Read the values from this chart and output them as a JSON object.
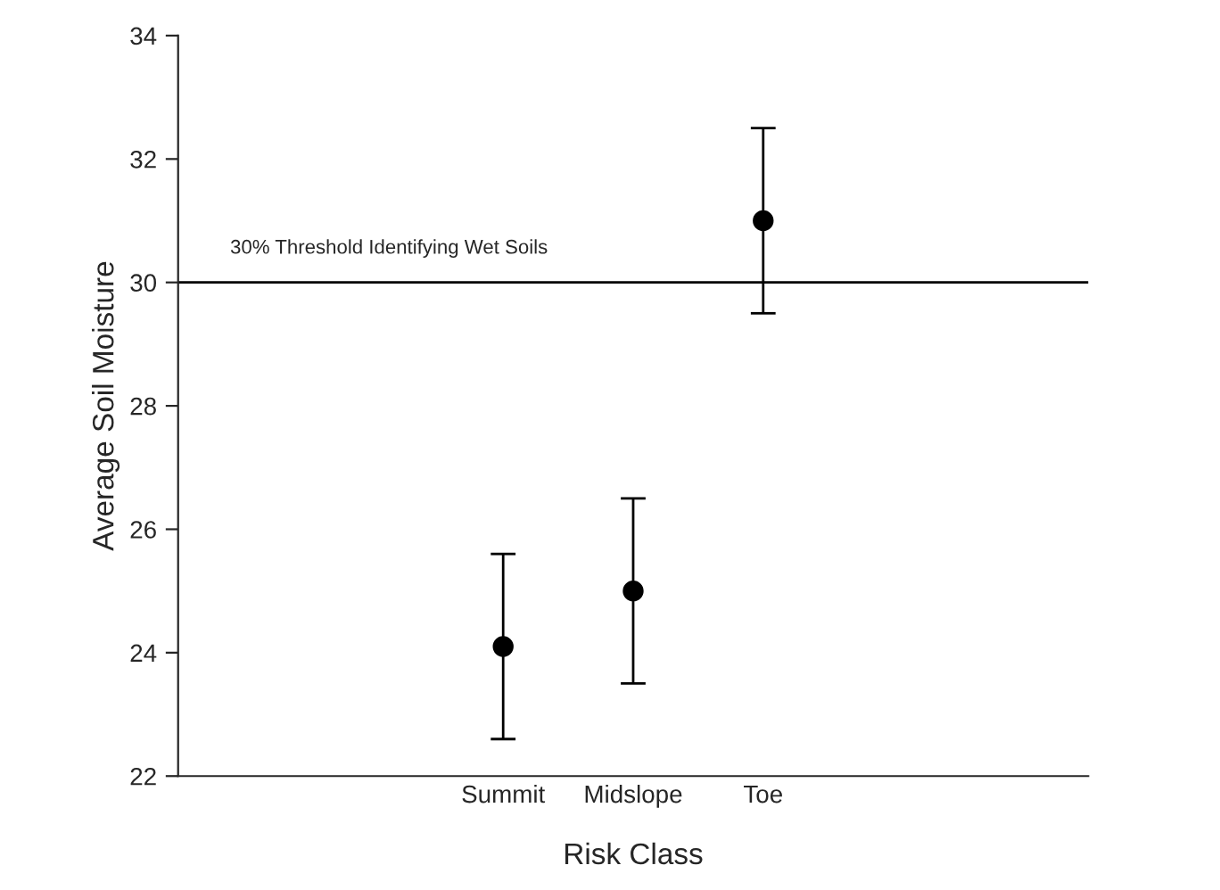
{
  "chart_data": {
    "type": "scatter",
    "xlabel": "Risk Class",
    "ylabel": "Average Soil Moisture",
    "categories": [
      null,
      null,
      "Summit",
      "Midslope",
      "Toe",
      null,
      null
    ],
    "values": [
      null,
      null,
      24.1,
      25.0,
      31.0,
      null,
      null
    ],
    "errors": [
      null,
      null,
      1.5,
      1.5,
      1.5,
      null,
      null
    ],
    "color": "#000000",
    "marker": "circle",
    "ylim": [
      22,
      34
    ],
    "yticks": [
      22,
      24,
      26,
      28,
      30,
      32,
      34
    ],
    "ref_lines": [
      {
        "axis": "y",
        "value": 30,
        "label": "30% Threshold Identifying Wet Soils",
        "color": "#000000"
      }
    ],
    "grid": false,
    "legend": false
  }
}
